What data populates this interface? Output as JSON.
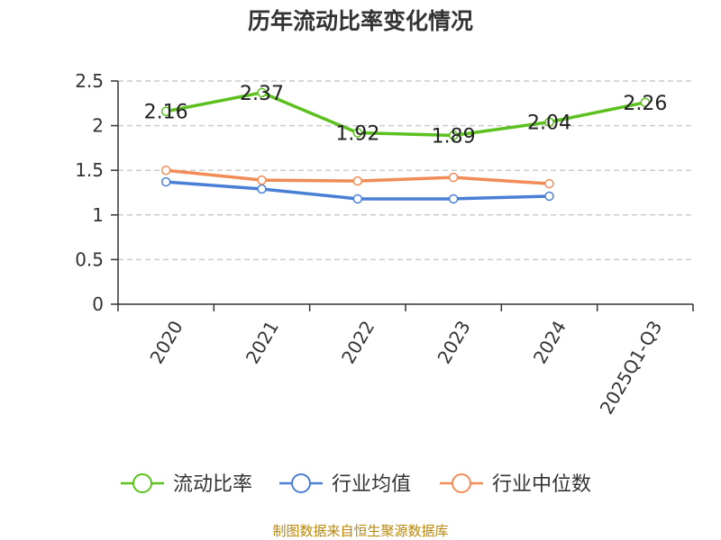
{
  "title": "历年流动比率变化情况",
  "source_note": "制图数据来自恒生聚源数据库",
  "chart_data": {
    "type": "line",
    "title": "历年流动比率变化情况",
    "categories": [
      "2020",
      "2021",
      "2022",
      "2023",
      "2024",
      "2025Q1-Q3"
    ],
    "ylim": [
      0,
      2.5
    ],
    "yticks": [
      0,
      0.5,
      1,
      1.5,
      2,
      2.5
    ],
    "ytick_labels": [
      "0",
      "0.5",
      "1",
      "1.5",
      "2",
      "2.5"
    ],
    "grid": true,
    "legend_position": "bottom",
    "series": [
      {
        "name": "流动比率",
        "color": "#5cc11e",
        "values": [
          2.16,
          2.37,
          1.92,
          1.89,
          2.04,
          2.26
        ],
        "labels": [
          "2.16",
          "2.37",
          "1.92",
          "1.89",
          "2.04",
          "2.26"
        ]
      },
      {
        "name": "行业均值",
        "color": "#4a7fd6",
        "values": [
          1.37,
          1.29,
          1.18,
          1.18,
          1.21,
          null
        ]
      },
      {
        "name": "行业中位数",
        "color": "#f28c57",
        "values": [
          1.5,
          1.39,
          1.38,
          1.42,
          1.35,
          null
        ]
      }
    ]
  }
}
